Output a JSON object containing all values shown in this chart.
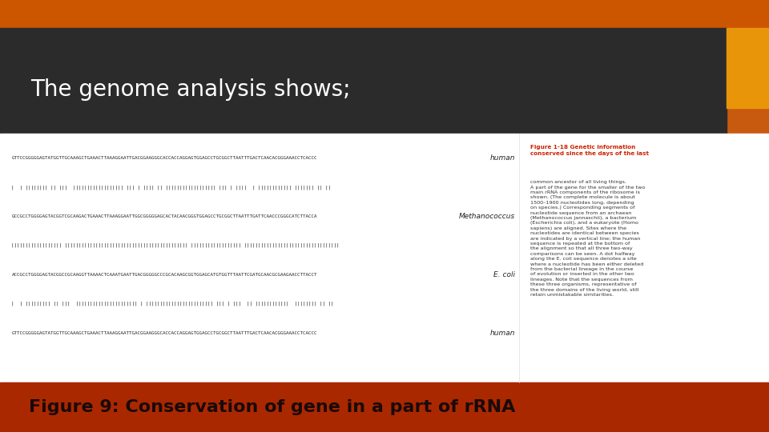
{
  "title_text": "The genome analysis shows;",
  "caption_text": "Figure 9: Conservation of gene in a part of rRNA",
  "bg_top_color": "#c85a10",
  "bg_header_color": "#2b2b2b",
  "bg_content_color": "#ffffff",
  "bg_bottom_color": "#aa2800",
  "accent_color": "#e8950a",
  "title_color": "#ffffff",
  "caption_color": "#1a0a0a",
  "title_fontsize": 20,
  "caption_fontsize": 16,
  "seq_human1": "GTTCCGGGGGAGTATGGTTGCAAAGCTGAAACTTAAAGGAATTGACGGAAGGGCACCACCAGGAGTGGAGCCTGCGGCTTAATTTGACTCAACACGGGAAACCTCACCC",
  "seq_match1": "|  | |||||||| || |||  |||||||||||||||||| ||| | |||| || |||||||||||||||||| ||| | ||||  | |||||||||||| ||||||| || ||",
  "seq_methano": "GCCGCCTGGGGAGTACGGTCGCAAGACTGAAACTTAAAGGAATTGGCGGGGGAGCACTACAACGGGTGGAGCCTGCGGCTTAATTTGATTCAACCCGGGCATCTTACCA",
  "seq_match2": "|||||||||||||||||| |||||||||||||||||||||||||||||||||||||||||||| |||||||||||||||||| ||||||||||||||||||||||||||||||||||",
  "seq_ecoli": "ACCGCCTGGGGAGTACGGCCGCAAGGTTAAAACTCAAATGAATTGACGGGGGCCCGCACAAGCGGTGGAGCATGTGGTTTAATTCGATGCAACGCGAAGAACCTTACCT",
  "seq_match3": "|  | ||||||||| || |||  |||||||||||||||||||||| | |||||||||||||||||||||||| ||| | |||  || ||||||||||||  |||||||| || ||",
  "seq_human2": "GTTCCGGGGGAGTATGGTTGCAAAGCTGAAACTTAAAGGAATTGACGGAAGGGCACCACCAGGAGTGGAGCCTGCGGCTTAATTTGACTCAACACGGGAAACCTCACCC",
  "label_human1": "human",
  "label_methano": "Methanococcus",
  "label_ecoli": "E. coli",
  "label_human2": "human",
  "bold_caption": "Figure 1-18 Genetic information\nconserved since the days of the last",
  "normal_caption": "common ancestor of all living things.\nA part of the gene for the smaller of the two\nmain rRNA components of the ribosome is\nshown. (The complete molecule is about\n1500–1900 nucleotides long, depending\non species.) Corresponding segments of\nnucleotide sequence from an archaean\n(Methanococcus jannaschii), a bacterium\n(Escherichia coli), and a eukaryote (Homo\nsapiens) are aligned. Sites where the\nnucleotides are identical between species\nare indicated by a vertical line; the human\nsequence is repeated at the bottom of\nthe alignment so that all three two-way\ncomparisons can be seen. A dot halfway\nalong the E. coli sequence denotes a site\nwhere a nucleotide has been either deleted\nfrom the bacterial lineage in the course\nof evolution or inserted in the other two\nlineages. Note that the sequences from\nthese three organisms, representative of\nthe three domains of the living world, still\nretain unmistakable similarities."
}
